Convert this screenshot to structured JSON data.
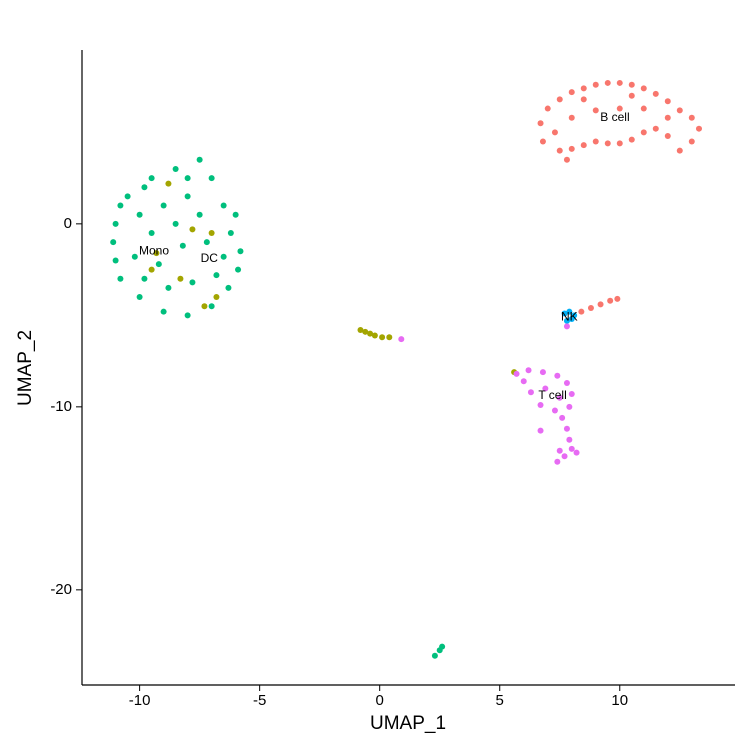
{
  "chart_data": {
    "type": "scatter",
    "xlabel": "UMAP_1",
    "ylabel": "UMAP_2",
    "xlim": [
      -12.4,
      14.8
    ],
    "ylim": [
      -25.2,
      9.5
    ],
    "xticks": [
      -10,
      -5,
      0,
      5,
      10
    ],
    "yticks": [
      -20,
      -10,
      0
    ],
    "series": [
      {
        "name": "B cell",
        "color": "#F8766D",
        "x": [
          6.7,
          6.8,
          7.0,
          7.5,
          8.0,
          8.5,
          9.0,
          9.5,
          10.0,
          10.5,
          11.0,
          11.5,
          12.0,
          12.5,
          13.0,
          13.3,
          13.0,
          12.5,
          12.0,
          11.5,
          11.0,
          10.5,
          10.0,
          9.5,
          9.0,
          8.5,
          8.0,
          7.5,
          7.3,
          8.0,
          9.0,
          10.0,
          11.0,
          12.0,
          8.5,
          10.5,
          7.8,
          8.4,
          8.8,
          9.2,
          9.6,
          9.9
        ],
        "y": [
          5.5,
          4.5,
          6.3,
          6.8,
          7.2,
          7.4,
          7.6,
          7.7,
          7.7,
          7.6,
          7.4,
          7.1,
          6.7,
          6.2,
          5.8,
          5.2,
          4.5,
          4.0,
          4.8,
          5.2,
          5.0,
          4.6,
          4.4,
          4.4,
          4.5,
          4.3,
          4.1,
          4.0,
          5.0,
          5.8,
          6.2,
          6.3,
          6.3,
          5.8,
          6.8,
          7.0,
          3.5,
          -4.8,
          -4.6,
          -4.4,
          -4.2,
          -4.1
        ]
      },
      {
        "name": "DC",
        "color": "#A3A500",
        "x": [
          -0.8,
          -0.6,
          -0.4,
          -0.2,
          0.1,
          0.4,
          -9.3,
          -7.8,
          -7.0,
          -8.8,
          -9.5,
          -6.8,
          -7.3,
          -8.3,
          5.6
        ],
        "y": [
          -5.8,
          -5.9,
          -6.0,
          -6.1,
          -6.2,
          -6.2,
          -1.6,
          -0.3,
          -0.5,
          2.2,
          -2.5,
          -4.0,
          -4.5,
          -3.0,
          -8.1
        ]
      },
      {
        "name": "Mono",
        "color": "#00BF7D",
        "x": [
          -10.5,
          -9.5,
          -8.5,
          -7.5,
          -7.0,
          -6.5,
          -6.0,
          -6.2,
          -5.8,
          -5.9,
          -6.3,
          -7.0,
          -8.0,
          -9.0,
          -10.0,
          -10.8,
          -11.0,
          -11.1,
          -11.0,
          -10.8,
          -10.0,
          -9.0,
          -8.0,
          -7.5,
          -8.5,
          -9.5,
          -10.2,
          -9.2,
          -8.2,
          -7.2,
          -6.8,
          -7.8,
          -8.8,
          -9.8,
          -6.5,
          -9.8,
          -8.0,
          2.3,
          2.5,
          2.6
        ],
        "y": [
          1.5,
          2.5,
          3.0,
          3.5,
          2.5,
          1.0,
          0.5,
          -0.5,
          -1.5,
          -2.5,
          -3.5,
          -4.5,
          -5.0,
          -4.8,
          -4.0,
          -3.0,
          -2.0,
          -1.0,
          0.0,
          1.0,
          0.5,
          1.0,
          1.5,
          0.5,
          0.0,
          -0.5,
          -1.8,
          -2.2,
          -1.2,
          -1.0,
          -2.8,
          -3.2,
          -3.5,
          -3.0,
          -1.8,
          2.0,
          2.5,
          -23.6,
          -23.3,
          -23.1
        ]
      },
      {
        "name": "NK",
        "color": "#00B0F6",
        "x": [
          7.7,
          7.9,
          8.1,
          7.8,
          8.0
        ],
        "y": [
          -4.9,
          -4.8,
          -5.0,
          -5.3,
          -5.2
        ]
      },
      {
        "name": "T cell",
        "color": "#E76BF3",
        "x": [
          5.7,
          6.2,
          6.8,
          7.4,
          7.8,
          8.0,
          7.9,
          7.3,
          6.7,
          6.3,
          6.0,
          6.9,
          7.5,
          7.6,
          7.8,
          7.9,
          8.0,
          7.7,
          7.4,
          7.5,
          8.2,
          6.7,
          0.9,
          7.8
        ],
        "y": [
          -8.2,
          -8.0,
          -8.1,
          -8.3,
          -8.7,
          -9.3,
          -10.0,
          -10.2,
          -9.9,
          -9.2,
          -8.6,
          -9.0,
          -9.5,
          -10.6,
          -11.2,
          -11.8,
          -12.3,
          -12.7,
          -13.0,
          -12.4,
          -12.5,
          -11.3,
          -6.3,
          -5.6
        ]
      }
    ],
    "annotations": [
      {
        "text": "B cell",
        "x": 9.8,
        "y": 5.8
      },
      {
        "text": "Mono",
        "x": -9.4,
        "y": -1.5
      },
      {
        "text": "DC",
        "x": -7.1,
        "y": -1.9
      },
      {
        "text": "NK",
        "x": 7.9,
        "y": -5.1
      },
      {
        "text": "T cell",
        "x": 7.2,
        "y": -9.4
      }
    ]
  }
}
